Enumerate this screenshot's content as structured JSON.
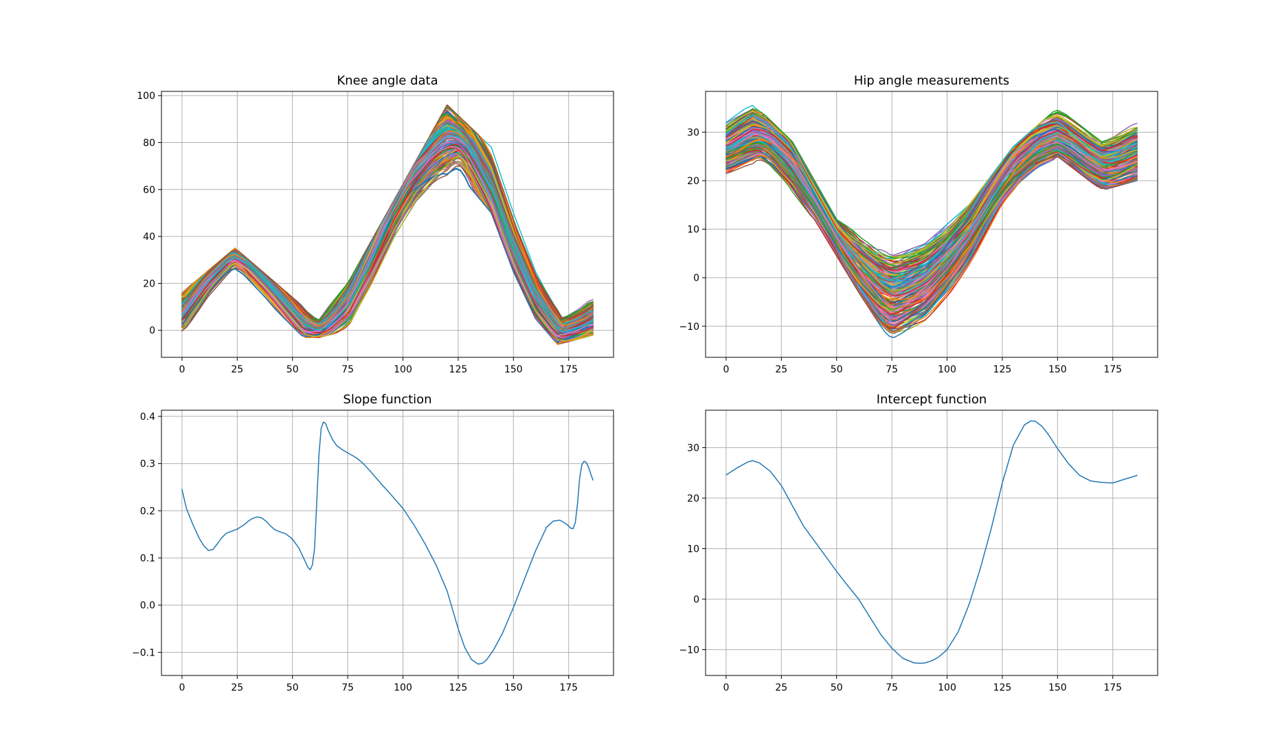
{
  "figure": {
    "background": "#ffffff",
    "palette": [
      "#1f77b4",
      "#ff7f0e",
      "#2ca02c",
      "#d62728",
      "#9467bd",
      "#8c564b",
      "#e377c2",
      "#7f7f7f",
      "#bcbd22",
      "#17becf"
    ]
  },
  "chart_data": [
    {
      "type": "line",
      "title": "Knee angle data",
      "xlabel": "",
      "ylabel": "",
      "xlim": [
        -9.3,
        195.3
      ],
      "ylim": [
        -11.5,
        101.8
      ],
      "xticks": [
        0,
        25,
        50,
        75,
        100,
        125,
        150,
        175
      ],
      "yticks": [
        0,
        20,
        40,
        60,
        80,
        100
      ],
      "grid": true,
      "legend": "none",
      "curve_family": {
        "count": 200,
        "x_range": [
          0,
          186
        ],
        "mean_curve": {
          "x": [
            0,
            10,
            20,
            24,
            30,
            40,
            50,
            55,
            60,
            65,
            75,
            85,
            95,
            105,
            115,
            120,
            125,
            130,
            140,
            150,
            160,
            168,
            172,
            176,
            182,
            186
          ],
          "y": [
            7,
            22,
            31,
            32,
            30,
            20,
            8,
            2,
            0,
            1,
            13,
            35,
            60,
            78,
            86,
            87,
            85,
            80,
            58,
            32,
            12,
            2,
            -1,
            0,
            2,
            5
          ]
        },
        "min_envelope": {
          "x": [
            0,
            24,
            55,
            62,
            75,
            125,
            140,
            150,
            160,
            170,
            186
          ],
          "y": [
            -1,
            26,
            -3,
            -3,
            0,
            67,
            50,
            25,
            5,
            -6,
            -2
          ]
        },
        "max_envelope": {
          "x": [
            0,
            24,
            55,
            62,
            75,
            120,
            140,
            150,
            160,
            172,
            186
          ],
          "y": [
            16,
            35,
            10,
            5,
            20,
            96,
            78,
            50,
            25,
            6,
            14
          ]
        }
      }
    },
    {
      "type": "line",
      "title": "Hip angle measurements",
      "xlabel": "",
      "ylabel": "",
      "xlim": [
        -9.3,
        195.3
      ],
      "ylim": [
        -16.4,
        38.4
      ],
      "xticks": [
        0,
        25,
        50,
        75,
        100,
        125,
        150,
        175
      ],
      "yticks": [
        -10,
        0,
        10,
        20,
        30
      ],
      "grid": true,
      "legend": "none",
      "curve_family": {
        "count": 200,
        "x_range": [
          0,
          186
        ],
        "mean_curve": {
          "x": [
            0,
            10,
            15,
            20,
            30,
            40,
            50,
            60,
            70,
            75,
            80,
            90,
            100,
            110,
            120,
            130,
            140,
            148,
            155,
            165,
            172,
            178,
            186
          ],
          "y": [
            27,
            29.5,
            30,
            29.5,
            25,
            17,
            9,
            2,
            -2.5,
            -3,
            -2.5,
            0,
            4,
            10,
            18,
            25,
            28.5,
            29,
            28,
            24.5,
            23,
            23.5,
            25.5
          ]
        },
        "min_envelope": {
          "x": [
            0,
            15,
            40,
            60,
            75,
            90,
            110,
            125,
            150,
            170,
            186
          ],
          "y": [
            21,
            24,
            12,
            -3,
            -13.5,
            -10,
            2,
            14,
            25,
            18,
            20
          ]
        },
        "max_envelope": {
          "x": [
            0,
            12,
            30,
            50,
            75,
            90,
            110,
            130,
            150,
            170,
            186
          ],
          "y": [
            32,
            36,
            28,
            12,
            4.5,
            7,
            15,
            27,
            35,
            28,
            32
          ]
        }
      }
    },
    {
      "type": "line",
      "title": "Slope function",
      "xlabel": "",
      "ylabel": "",
      "xlim": [
        -9.3,
        195.3
      ],
      "ylim": [
        -0.149,
        0.413
      ],
      "xticks": [
        0,
        25,
        50,
        75,
        100,
        125,
        150,
        175
      ],
      "yticks": [
        -0.1,
        0.0,
        0.1,
        0.2,
        0.3,
        0.4
      ],
      "ytick_labels": [
        "−0.1",
        "0.0",
        "0.1",
        "0.2",
        "0.3",
        "0.4"
      ],
      "grid": true,
      "legend": "none",
      "series": [
        {
          "color": "#1f77b4",
          "x": [
            0,
            2,
            5,
            8,
            10,
            12,
            14,
            16,
            18,
            20,
            22,
            25,
            28,
            30,
            32,
            34,
            36,
            38,
            40,
            42,
            44,
            47,
            50,
            53,
            55,
            57,
            58,
            59,
            60,
            61,
            62,
            63,
            64,
            65,
            66,
            68,
            70,
            73,
            76,
            79,
            82,
            85,
            90,
            95,
            100,
            105,
            110,
            115,
            120,
            125,
            128,
            131,
            134,
            136,
            138,
            141,
            145,
            150,
            155,
            160,
            165,
            168,
            171,
            174,
            176,
            177,
            178,
            179,
            180,
            181,
            182,
            183,
            184,
            185,
            186
          ],
          "y": [
            0.245,
            0.205,
            0.17,
            0.14,
            0.125,
            0.116,
            0.118,
            0.13,
            0.143,
            0.152,
            0.156,
            0.161,
            0.17,
            0.178,
            0.184,
            0.187,
            0.185,
            0.178,
            0.168,
            0.16,
            0.156,
            0.151,
            0.14,
            0.12,
            0.1,
            0.08,
            0.075,
            0.085,
            0.12,
            0.22,
            0.32,
            0.375,
            0.388,
            0.385,
            0.372,
            0.352,
            0.338,
            0.328,
            0.32,
            0.312,
            0.3,
            0.285,
            0.258,
            0.232,
            0.205,
            0.17,
            0.13,
            0.085,
            0.03,
            -0.05,
            -0.09,
            -0.115,
            -0.125,
            -0.123,
            -0.115,
            -0.095,
            -0.06,
            -0.005,
            0.055,
            0.115,
            0.165,
            0.178,
            0.18,
            0.172,
            0.163,
            0.162,
            0.175,
            0.215,
            0.27,
            0.298,
            0.305,
            0.302,
            0.292,
            0.278,
            0.265
          ]
        }
      ]
    },
    {
      "type": "line",
      "title": "Intercept function",
      "xlabel": "",
      "ylabel": "",
      "xlim": [
        -9.3,
        195.3
      ],
      "ylim": [
        -15.1,
        37.4
      ],
      "xticks": [
        0,
        25,
        50,
        75,
        100,
        125,
        150,
        175
      ],
      "yticks": [
        -10,
        0,
        10,
        20,
        30
      ],
      "ytick_labels": [
        "−10",
        "0",
        "10",
        "20",
        "30"
      ],
      "grid": true,
      "legend": "none",
      "series": [
        {
          "color": "#1f77b4",
          "x": [
            0,
            5,
            10,
            12,
            15,
            20,
            25,
            30,
            35,
            40,
            45,
            50,
            55,
            60,
            65,
            70,
            75,
            80,
            85,
            88,
            90,
            93,
            96,
            100,
            105,
            110,
            115,
            120,
            125,
            130,
            135,
            138,
            140,
            143,
            146,
            150,
            155,
            160,
            165,
            170,
            175,
            180,
            186
          ],
          "y": [
            24.6,
            26,
            27.2,
            27.4,
            27,
            25.3,
            22.5,
            18.5,
            14.5,
            11.5,
            8.5,
            5.5,
            2.7,
            0,
            -3.5,
            -7,
            -9.7,
            -11.7,
            -12.6,
            -12.7,
            -12.6,
            -12.2,
            -11.5,
            -10,
            -6.5,
            -1,
            6,
            14,
            23,
            30.5,
            34.5,
            35.3,
            35.2,
            34.2,
            32.5,
            29.8,
            26.8,
            24.5,
            23.4,
            23.1,
            23,
            23.7,
            24.5
          ]
        }
      ]
    }
  ]
}
